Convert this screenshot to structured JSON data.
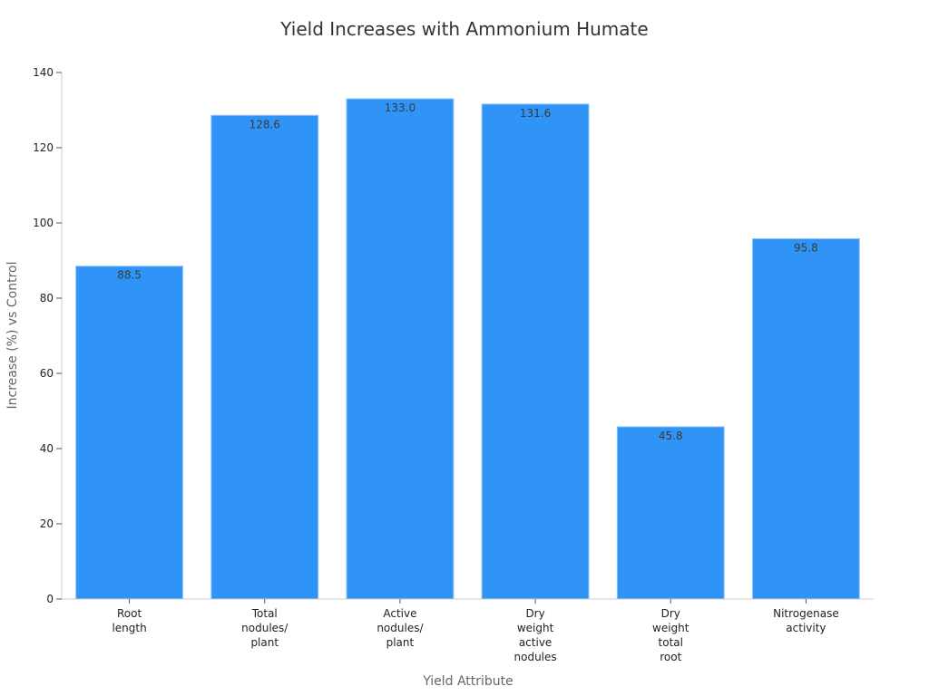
{
  "chart_data": {
    "type": "bar",
    "title": "Yield Increases with Ammonium Humate",
    "xlabel": "Yield Attribute",
    "ylabel": "Increase (%) vs Control",
    "categories": [
      [
        "Root",
        "length"
      ],
      [
        "Total",
        "nodules/",
        "plant"
      ],
      [
        "Active",
        "nodules/",
        "plant"
      ],
      [
        "Dry",
        "weight",
        "active",
        "nodules"
      ],
      [
        "Dry",
        "weight",
        "total",
        "root"
      ],
      [
        "Nitrogenase",
        "activity"
      ]
    ],
    "values": [
      88.5,
      128.6,
      133.0,
      131.6,
      45.8,
      95.8
    ],
    "value_labels": [
      "88.5",
      "128.6",
      "133.0",
      "131.6",
      "45.8",
      "95.8"
    ],
    "ylim": [
      0,
      140
    ],
    "yticks": [
      0,
      20,
      40,
      60,
      80,
      100,
      120,
      140
    ],
    "grid": false,
    "legend": "none",
    "colors": {
      "bar": "#3094f7",
      "bar_edge": "#8cc4fb",
      "axis": "#cccccc"
    }
  }
}
